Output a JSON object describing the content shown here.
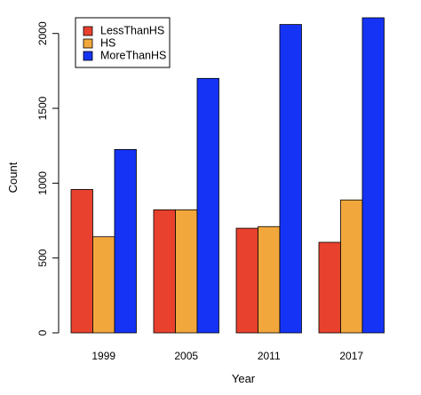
{
  "chart_data": {
    "type": "bar",
    "categories": [
      "1999",
      "2005",
      "2011",
      "2017"
    ],
    "series": [
      {
        "name": "LessThanHS",
        "color": "#e8412d",
        "values": [
          958,
          822,
          699,
          605
        ]
      },
      {
        "name": "HS",
        "color": "#f2a73c",
        "values": [
          642,
          822,
          710,
          888
        ]
      },
      {
        "name": "MoreThanHS",
        "color": "#1533f5",
        "values": [
          1225,
          1700,
          2060,
          2105
        ]
      }
    ],
    "xlabel": "Year",
    "ylabel": "Count",
    "ylim": [
      0,
      2105
    ],
    "yticks": [
      0,
      500,
      1000,
      1500,
      2000
    ],
    "legend_position": "top-left",
    "grid": false
  }
}
